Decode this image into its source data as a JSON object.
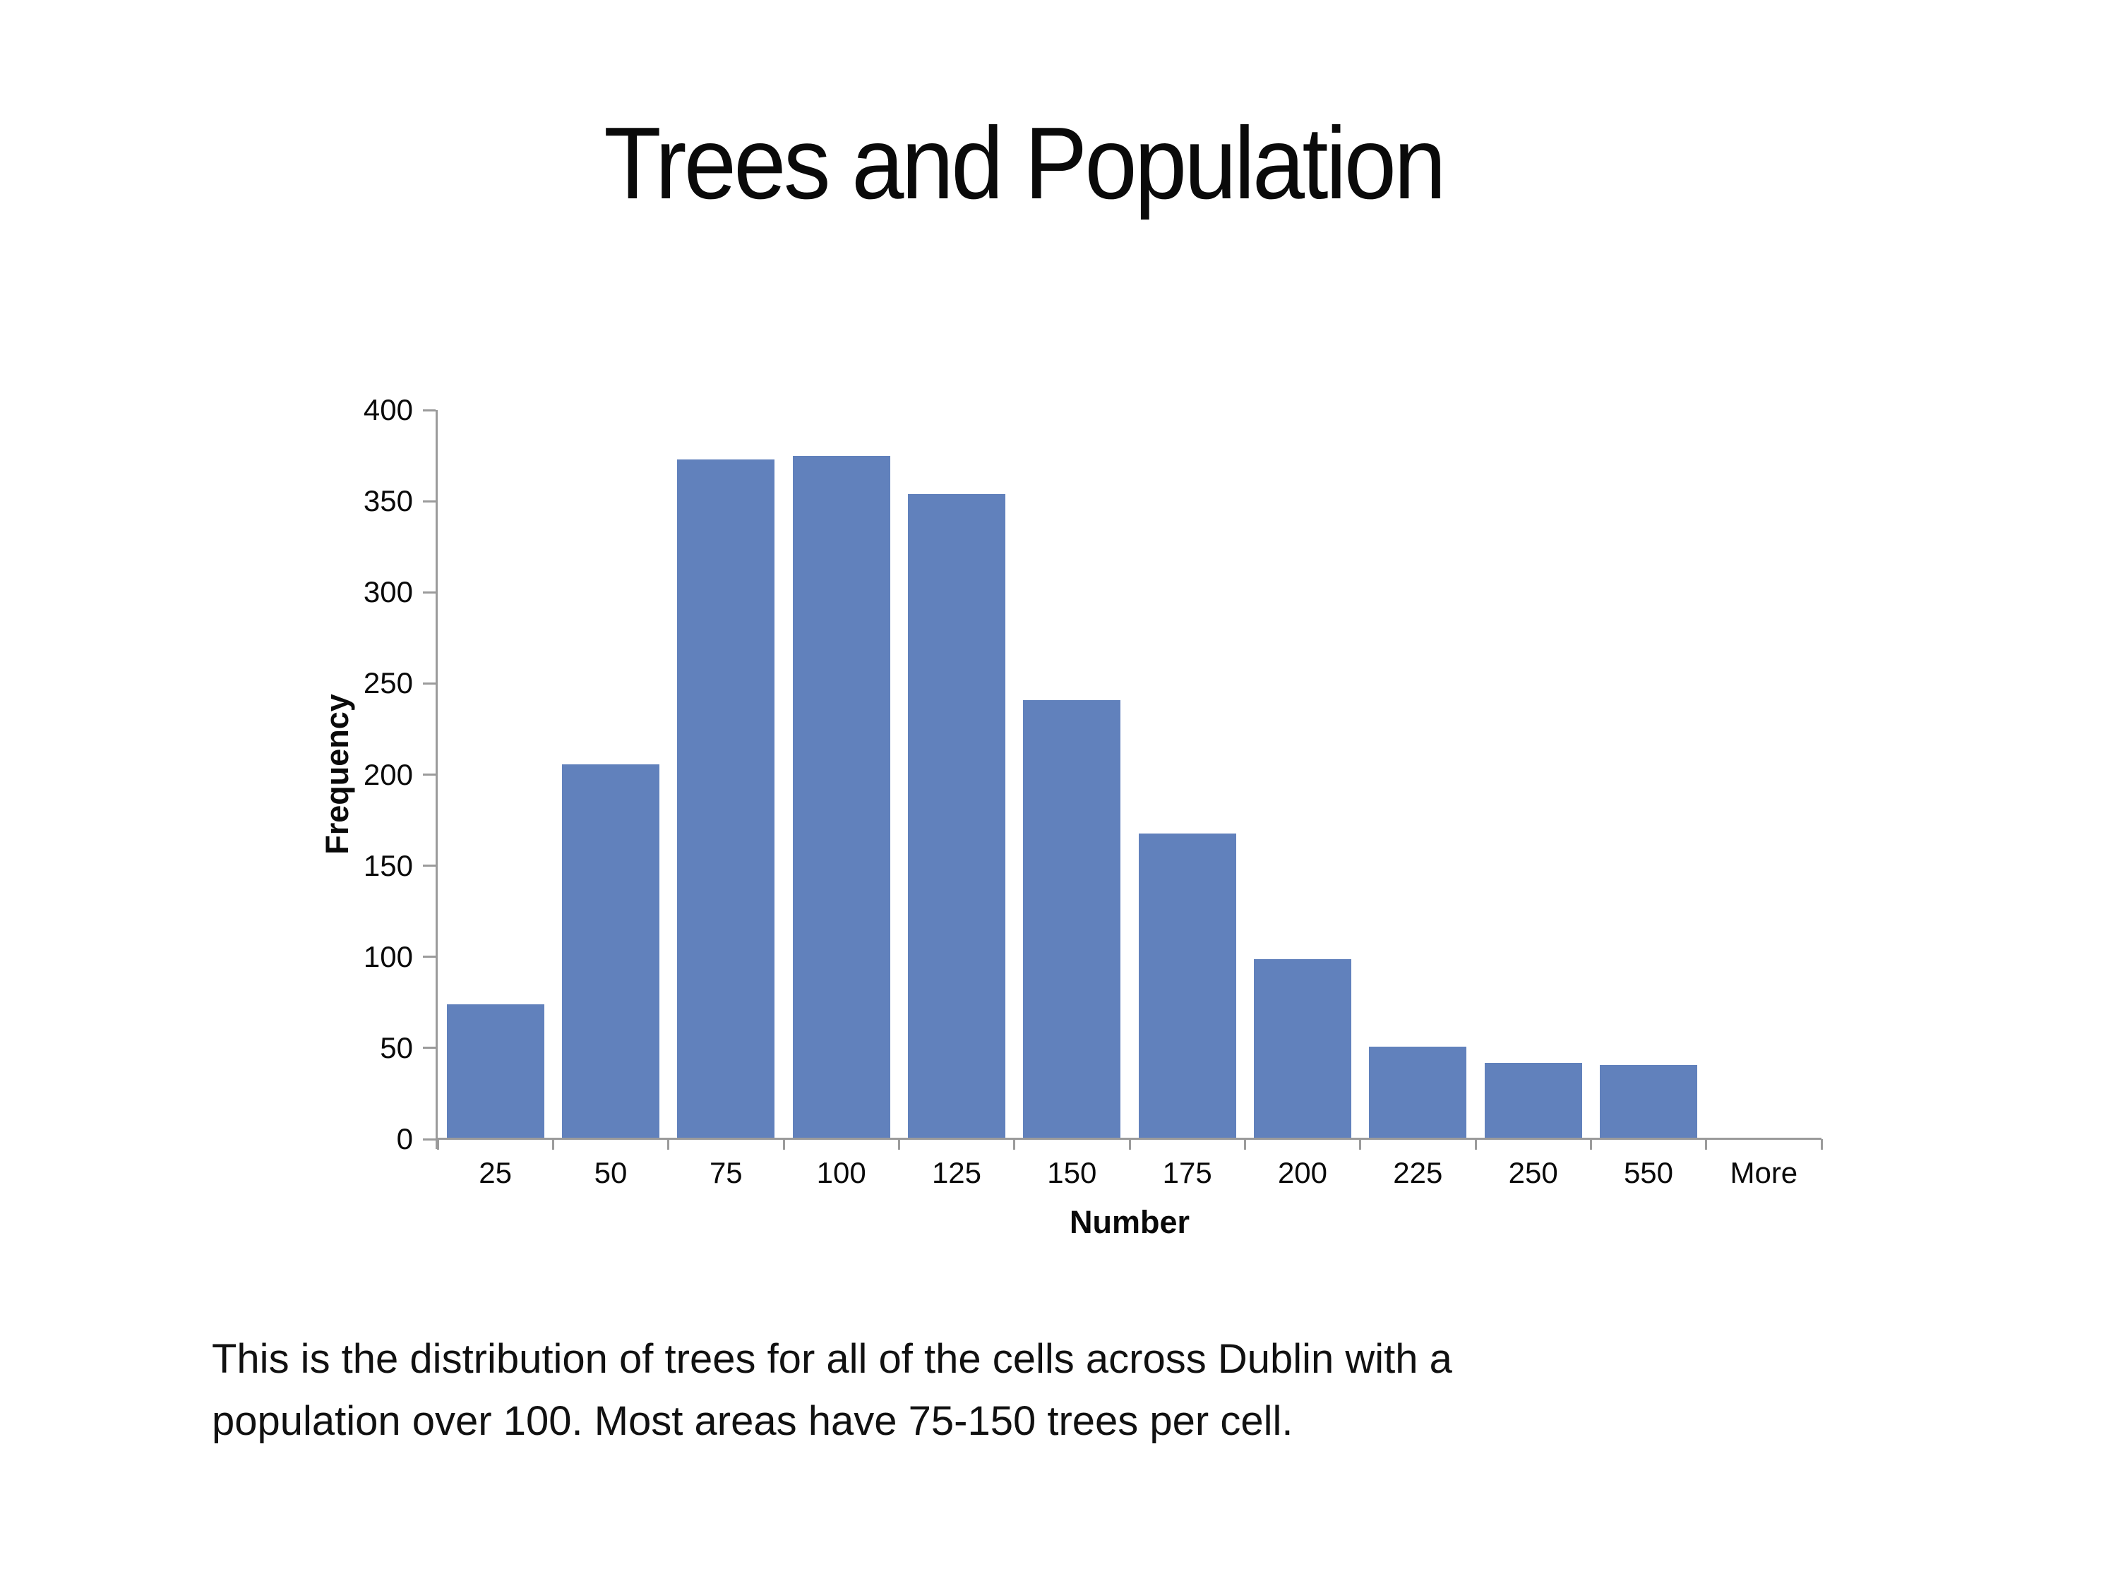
{
  "slide": {
    "title": "Trees and Population",
    "caption_lines": [
      "This is the distribution of trees for all of the cells across Dublin with a",
      "population over 100. Most areas have 75-150 trees per cell."
    ]
  },
  "chart_data": {
    "type": "bar",
    "title": "Trees and Population",
    "categories": [
      "25",
      "50",
      "75",
      "100",
      "125",
      "150",
      "175",
      "200",
      "225",
      "250",
      "550",
      "More"
    ],
    "values": [
      73,
      205,
      372,
      374,
      353,
      240,
      167,
      98,
      50,
      41,
      40,
      0
    ],
    "xlabel": "Number",
    "ylabel": "Frequency",
    "ylim": [
      0,
      400
    ],
    "ytick_step": 50,
    "yticks": [
      0,
      50,
      100,
      150,
      200,
      250,
      300,
      350,
      400
    ],
    "grid": false,
    "legend": false,
    "bar_color": "#6181BC",
    "axis_color": "#9B9B9B",
    "text_color": "#0A0A0A"
  }
}
